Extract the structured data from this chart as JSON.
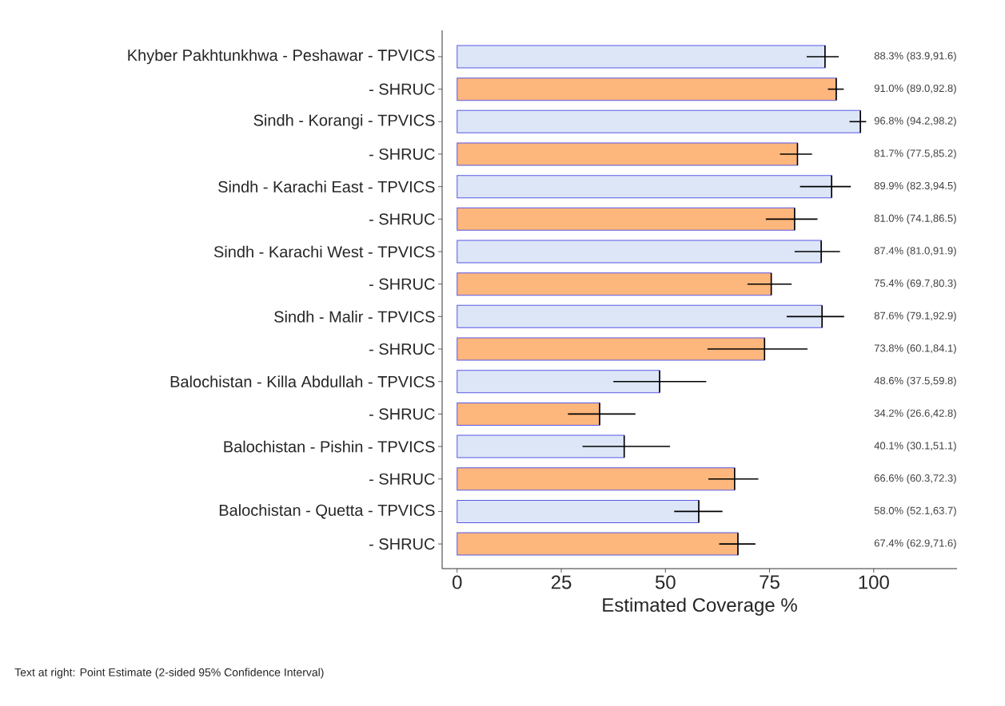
{
  "chart_data": {
    "type": "bar",
    "orientation": "horizontal",
    "categories": [
      "Khyber Pakhtunkhwa - Peshawar - TPVICS",
      "- SHRUC",
      "Sindh - Korangi - TPVICS",
      "- SHRUC",
      "Sindh - Karachi East - TPVICS",
      "- SHRUC",
      "Sindh - Karachi West - TPVICS",
      "- SHRUC",
      "Sindh - Malir - TPVICS",
      "- SHRUC",
      "Balochistan - Killa Abdullah - TPVICS",
      "- SHRUC",
      "Balochistan - Pishin - TPVICS",
      "- SHRUC",
      "Balochistan - Quetta - TPVICS",
      "- SHRUC"
    ],
    "values": [
      88.3,
      91.0,
      96.8,
      81.7,
      89.9,
      81.0,
      87.4,
      75.4,
      87.6,
      73.8,
      48.6,
      34.2,
      40.1,
      66.6,
      58.0,
      67.4
    ],
    "errors": [
      [
        83.9,
        91.6
      ],
      [
        89.0,
        92.8
      ],
      [
        94.2,
        98.2
      ],
      [
        77.5,
        85.2
      ],
      [
        82.3,
        94.5
      ],
      [
        74.1,
        86.5
      ],
      [
        81.0,
        91.9
      ],
      [
        69.7,
        80.3
      ],
      [
        79.1,
        92.9
      ],
      [
        60.1,
        84.1
      ],
      [
        37.5,
        59.8
      ],
      [
        26.6,
        42.8
      ],
      [
        30.1,
        51.1
      ],
      [
        60.3,
        72.3
      ],
      [
        52.1,
        63.7
      ],
      [
        62.9,
        71.6
      ]
    ],
    "value_labels": [
      "88.3% (83.9,91.6)",
      "91.0% (89.0,92.8)",
      "96.8% (94.2,98.2)",
      "81.7% (77.5,85.2)",
      "89.9% (82.3,94.5)",
      "81.0% (74.1,86.5)",
      "87.4% (81.0,91.9)",
      "75.4% (69.7,80.3)",
      "87.6% (79.1,92.9)",
      "73.8% (60.1,84.1)",
      "48.6% (37.5,59.8)",
      "34.2% (26.6,42.8)",
      "40.1% (30.1,51.1)",
      "66.6% (60.3,72.3)",
      "58.0% (52.1,63.7)",
      "67.4% (62.9,71.6)"
    ],
    "colors": [
      "#dce6f7",
      "#fdb67c",
      "#dce6f7",
      "#fdb67c",
      "#dce6f7",
      "#fdb67c",
      "#dce6f7",
      "#fdb67c",
      "#dce6f7",
      "#fdb67c",
      "#dce6f7",
      "#fdb67c",
      "#dce6f7",
      "#fdb67c",
      "#dce6f7",
      "#fdb67c"
    ],
    "xlim": [
      -3.6,
      120
    ],
    "xticks": [
      0,
      25,
      50,
      75,
      100
    ],
    "xlabel": "Estimated Coverage %",
    "annotations": [
      "Text at right: Point Estimate (2-sided 95% Confidence Interval)"
    ]
  }
}
